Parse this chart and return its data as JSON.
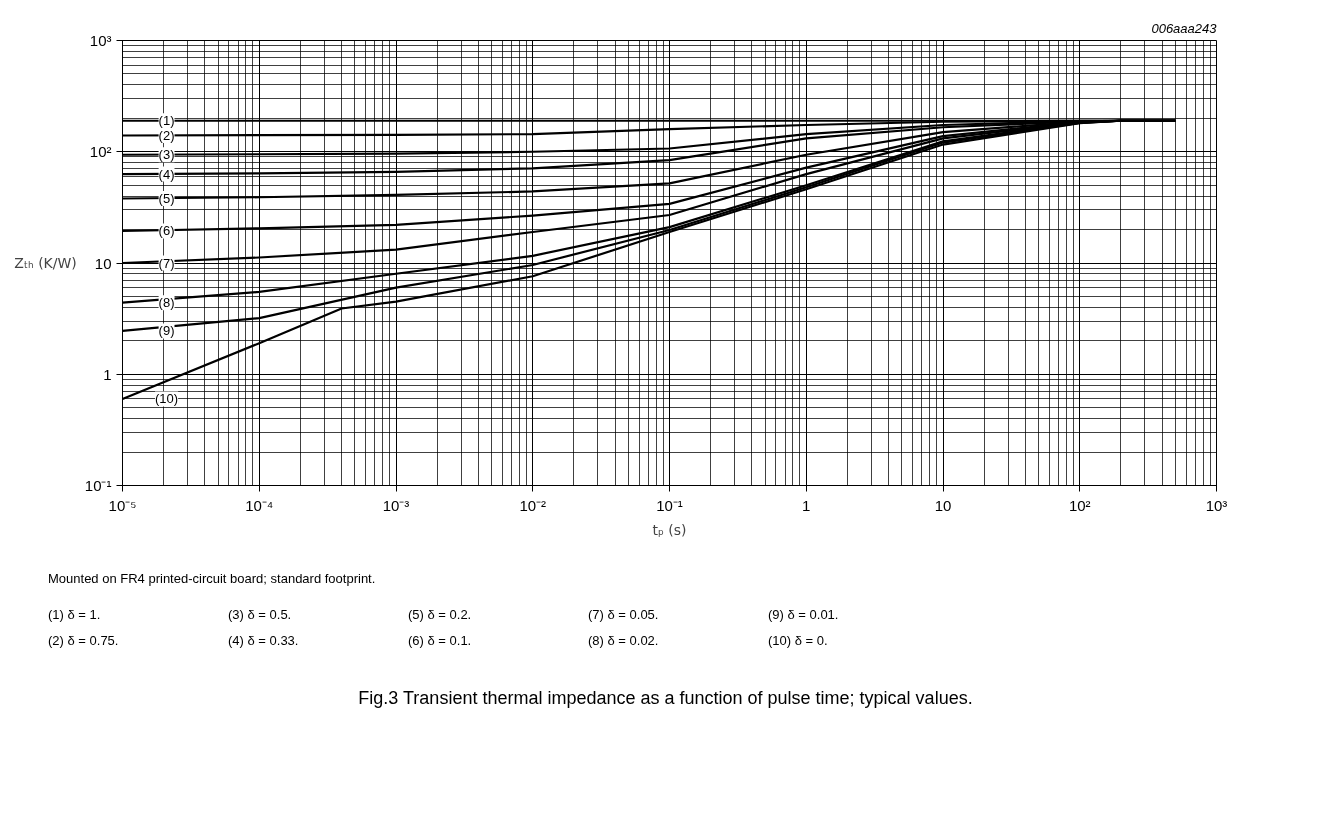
{
  "chart_data": {
    "type": "line",
    "title": "Fig.3  Transient thermal impedance as a function of pulse time; typical values.",
    "xlabel": "tₚ (s)",
    "ylabel": "Zₜₕ (K/W)",
    "log": "xy",
    "grid": true,
    "line_style": "solid",
    "marker": "none",
    "xlim": [
      1e-05,
      1000
    ],
    "ylim": [
      0.1,
      1000
    ],
    "xticks": [
      {
        "value": 1e-05,
        "label": "10⁻⁵"
      },
      {
        "value": 0.0001,
        "label": "10⁻⁴"
      },
      {
        "value": 0.001,
        "label": "10⁻³"
      },
      {
        "value": 0.01,
        "label": "10⁻²"
      },
      {
        "value": 0.1,
        "label": "10⁻¹"
      },
      1,
      10,
      {
        "value": 100,
        "label": "10²"
      },
      {
        "value": 1000,
        "label": "10³"
      }
    ],
    "yticks": [
      {
        "value": 0.1,
        "label": "10⁻¹"
      },
      1,
      10,
      {
        "value": 100,
        "label": "10²"
      },
      {
        "value": 1000,
        "label": "10³"
      }
    ],
    "x": [
      1e-05,
      0.0001,
      0.001,
      0.01,
      0.1,
      1,
      10,
      100,
      200,
      500
    ],
    "series": [
      {
        "name": "(1)",
        "color": "#000000",
        "values": [
          190,
          190,
          190,
          190,
          190,
          190,
          190,
          190,
          190,
          190
        ]
      },
      {
        "name": "(2)",
        "color": "#000000",
        "values": [
          140,
          141,
          142,
          144,
          160,
          174,
          186,
          190,
          190,
          190
        ]
      },
      {
        "name": "(3)",
        "color": "#000000",
        "values": [
          94,
          95,
          96,
          100,
          107,
          144,
          174,
          188,
          190,
          190
        ]
      },
      {
        "name": "(4)",
        "color": "#000000",
        "values": [
          63,
          64,
          66,
          71,
          84,
          132,
          166,
          187,
          190,
          190
        ]
      },
      {
        "name": "(5)",
        "color": "#000000",
        "values": [
          38,
          39,
          41,
          44,
          52,
          94,
          150,
          186,
          190,
          190
        ]
      },
      {
        "name": "(6)",
        "color": "#000000",
        "values": [
          19.4,
          20.5,
          22,
          26.7,
          34,
          72,
          138,
          185,
          190,
          190
        ]
      },
      {
        "name": "(7)",
        "color": "#000000",
        "values": [
          10,
          11.2,
          13.2,
          19,
          27,
          63,
          132,
          184,
          190,
          190
        ]
      },
      {
        "name": "(8)",
        "color": "#000000",
        "values": [
          4.4,
          5.5,
          8,
          11.6,
          21,
          50,
          124,
          183,
          190,
          190
        ]
      },
      {
        "name": "(9)",
        "color": "#000000",
        "values": [
          2.45,
          3.2,
          6,
          9.6,
          19.8,
          48,
          121,
          182,
          190,
          190
        ]
      },
      {
        "name": "(10)",
        "color": "#000000",
        "x": [
          1e-05,
          0.0001,
          0.0004,
          0.001,
          0.01,
          0.1,
          1,
          10,
          100,
          200,
          500
        ],
        "values": [
          0.6,
          1.9,
          3.9,
          4.5,
          7.6,
          19,
          46,
          116,
          181,
          190,
          190
        ]
      }
    ],
    "annotations": [
      "006aaa243",
      "Mounted on FR4 printed-circuit board; standard footprint.",
      "(1)  δ = 1.",
      "(3)  δ = 0.5.",
      "(5)  δ = 0.2.",
      "(7)  δ = 0.05.",
      "(9)  δ = 0.01.",
      "(2)  δ = 0.75.",
      "(4)  δ = 0.33.",
      "(6)  δ = 0.1.",
      "(8)  δ = 0.02.",
      "(10) δ = 0."
    ]
  }
}
